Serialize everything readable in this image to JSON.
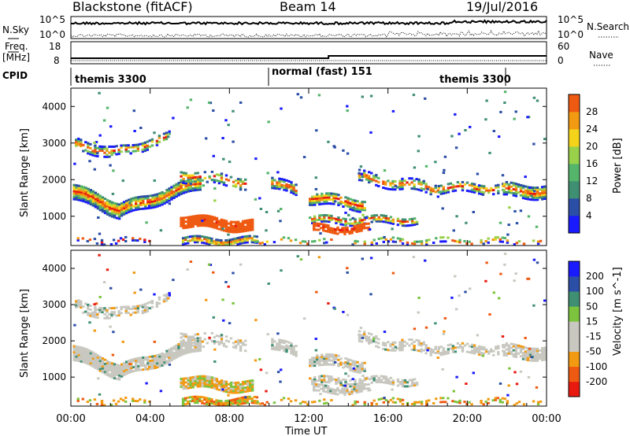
{
  "header": {
    "station": "Blackstone (fitACF)",
    "beam": "Beam 14",
    "date": "19/Jul/2016"
  },
  "top_panels": {
    "left_nsky": "N.Sky",
    "right_nsearch": "N.Search",
    "freq_label": "Freq.",
    "freq_unit": "[MHz]",
    "cpid_label": "CPID",
    "nave_label": "Nave",
    "noise_left_ticks": [
      "10^5",
      "10^0"
    ],
    "noise_right_ticks": [
      "10^5",
      "10^0"
    ],
    "freq_ticks": [
      "18",
      "8"
    ],
    "nave_ticks": [
      "60",
      "0"
    ]
  },
  "cpid_segments": [
    {
      "label": "themis 3300"
    },
    {
      "label": "normal (fast) 151"
    },
    {
      "label": "themis 3300"
    }
  ],
  "colors": {
    "power": [
      "#1a1aff",
      "#2b4ea6",
      "#3f8f73",
      "#55b56a",
      "#9ad14a",
      "#f4d41a",
      "#f29a12",
      "#ef5a12",
      "#e81a10"
    ],
    "velocity": [
      "#e81a10",
      "#ef5a12",
      "#f29a12",
      "#c8c8c0",
      "#c8c8c0",
      "#7dc43e",
      "#3f8f73",
      "#2b4ea6",
      "#1a1aff"
    ]
  },
  "chart_data": [
    {
      "type": "heatmap",
      "name": "power",
      "ylabel": "Slant Range [km]",
      "ylim": [
        200,
        4500
      ],
      "yticks": [
        "1000",
        "2000",
        "3000",
        "4000"
      ],
      "colorbar_label": "Power [dB]",
      "colorbar_ticks": [
        "4",
        "8",
        "12",
        "16",
        "20",
        "24",
        "28"
      ]
    },
    {
      "type": "heatmap",
      "name": "velocity",
      "ylabel": "Slant Range [km]",
      "ylim": [
        200,
        4500
      ],
      "yticks": [
        "1000",
        "2000",
        "3000",
        "4000"
      ],
      "colorbar_label": "Velocity [m s^-1]",
      "colorbar_ticks": [
        "200",
        "100",
        "50",
        "15",
        "-15",
        "-50",
        "-100",
        "-200"
      ]
    }
  ],
  "time_axis": {
    "xlabel": "Time UT",
    "ticks": [
      "00:00",
      "04:00",
      "08:00",
      "12:00",
      "16:00",
      "20:00",
      "00:00"
    ]
  }
}
